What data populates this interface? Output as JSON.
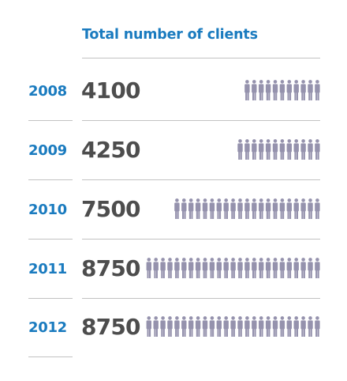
{
  "chart_data": {
    "type": "table",
    "title": "Total number of clients",
    "categories": [
      "2008",
      "2009",
      "2010",
      "2011",
      "2012"
    ],
    "series": [
      {
        "values": [
          4100,
          4250,
          7500,
          8750,
          8750
        ]
      }
    ],
    "pictogram_counts": [
      11,
      12,
      21,
      25,
      25
    ],
    "icon": "person-icon",
    "colors": {
      "title": "#1a7bbf",
      "year": "#1a7bbf",
      "value": "#4d4d4d",
      "icon": "#9592ad",
      "rule": "#c2c2c2"
    },
    "rows": [
      {
        "year": "2008",
        "value": "4100"
      },
      {
        "year": "2009",
        "value": "4250"
      },
      {
        "year": "2010",
        "value": "7500"
      },
      {
        "year": "2011",
        "value": "8750"
      },
      {
        "year": "2012",
        "value": "8750"
      }
    ]
  }
}
